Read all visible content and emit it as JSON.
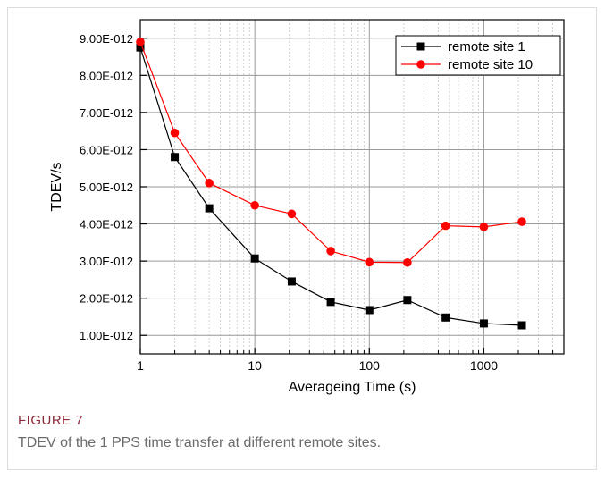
{
  "figure": {
    "label": "FIGURE 7",
    "caption": "TDEV of the 1 PPS time transfer at different remote sites."
  },
  "chart_data": {
    "type": "line",
    "xscale": "log",
    "xlim": [
      1,
      5000
    ],
    "ylim": [
      5e-13,
      9.5e-12
    ],
    "xlabel": "Averageing Time (s)",
    "ylabel": "TDEV/s",
    "x_ticks": [
      1,
      10,
      100,
      1000
    ],
    "x_tick_labels": [
      "1",
      "10",
      "100",
      "1000"
    ],
    "y_ticks": [
      1e-12,
      2e-12,
      3e-12,
      4e-12,
      5e-12,
      6e-12,
      7e-12,
      8e-12,
      9e-12
    ],
    "y_tick_labels": [
      "1.00E-012",
      "2.00E-012",
      "3.00E-012",
      "4.00E-012",
      "5.00E-012",
      "6.00E-012",
      "7.00E-012",
      "8.00E-012",
      "9.00E-012"
    ],
    "grid": true,
    "legend_position": "top-right",
    "series": [
      {
        "name": "remote site 1",
        "color": "#000000",
        "marker": "square",
        "x": [
          1,
          2,
          4,
          10,
          21,
          46,
          100,
          215,
          464,
          1000,
          2150
        ],
        "y": [
          8.75e-12,
          5.8e-12,
          4.42e-12,
          3.07e-12,
          2.45e-12,
          1.9e-12,
          1.68e-12,
          1.95e-12,
          1.48e-12,
          1.32e-12,
          1.27e-12
        ]
      },
      {
        "name": "remote site 10",
        "color": "#ff0000",
        "marker": "circle",
        "x": [
          1,
          2,
          4,
          10,
          21,
          46,
          100,
          215,
          464,
          1000,
          2150
        ],
        "y": [
          8.9e-12,
          6.45e-12,
          5.1e-12,
          4.5e-12,
          4.27e-12,
          3.27e-12,
          2.97e-12,
          2.96e-12,
          3.95e-12,
          3.92e-12,
          4.06e-12
        ]
      }
    ]
  }
}
